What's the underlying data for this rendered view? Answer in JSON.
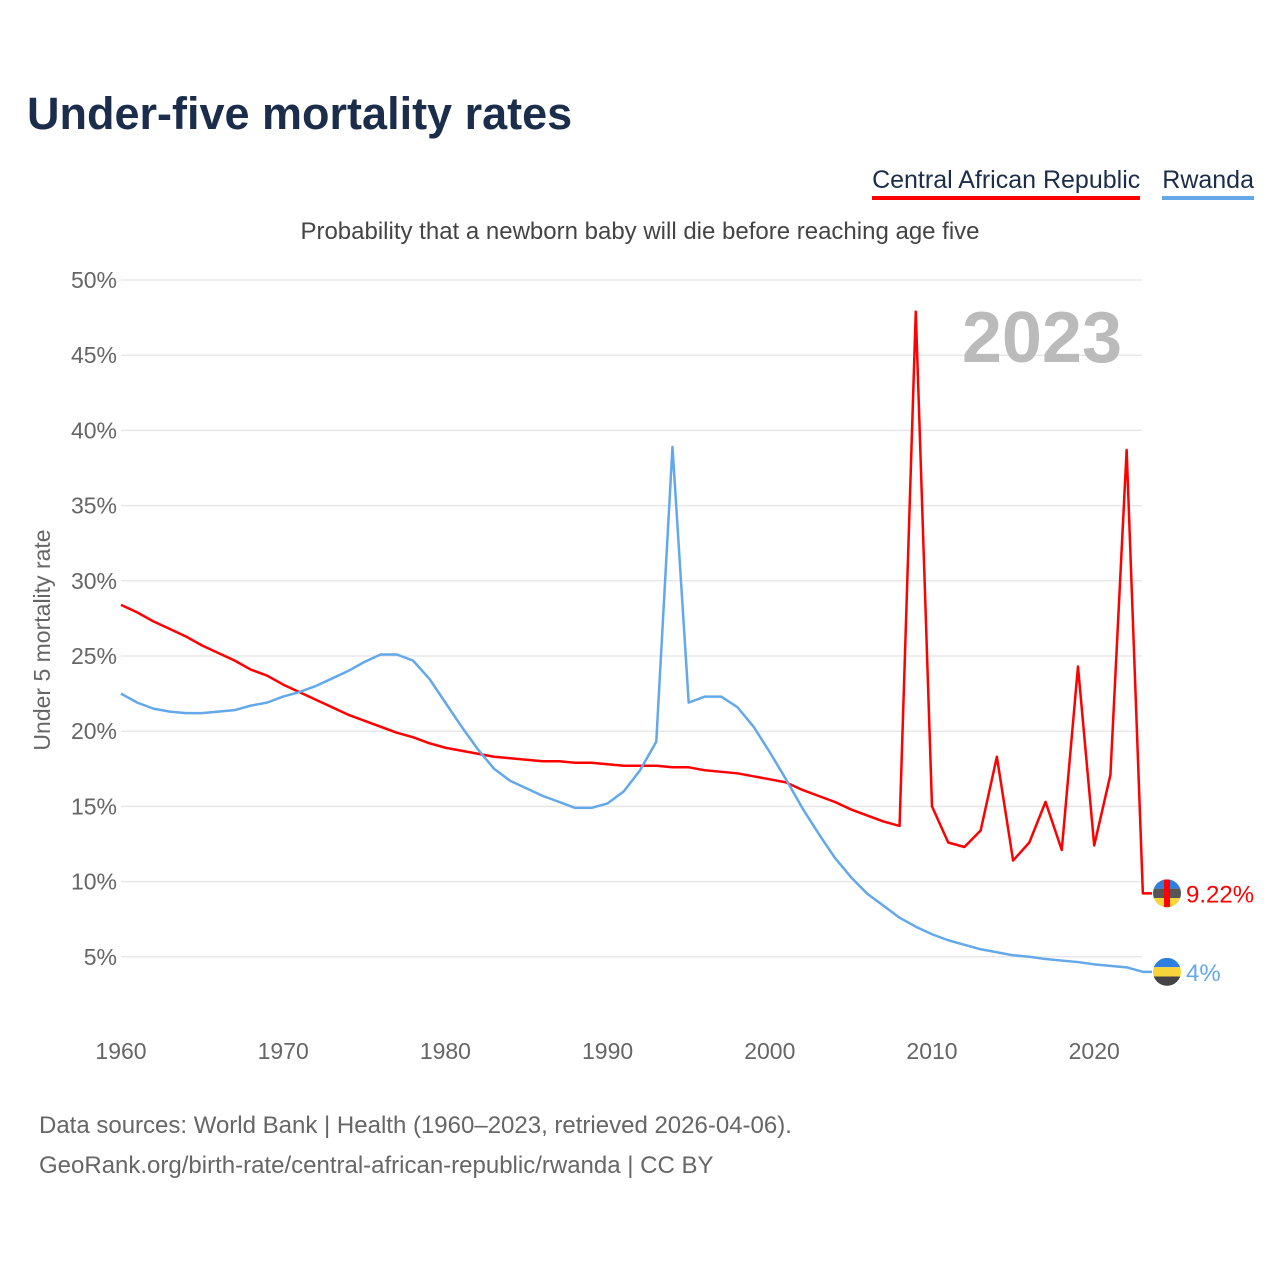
{
  "title": "Under-five mortality rates",
  "footer": {
    "line1": "Data sources: World Bank | Health (1960–2023, retrieved 2026-04-06).",
    "line2": "GeoRank.org/birth-rate/central-african-republic/rwanda | CC BY"
  },
  "chart_data": {
    "type": "line",
    "title": "Under-five mortality rates",
    "subtitle": "Probability that a newborn baby will die before reaching age five",
    "ylabel": "Under 5 mortality rate",
    "xlabel": "",
    "year_label": "2023",
    "xlim": [
      1960,
      2023
    ],
    "ylim": [
      0,
      50
    ],
    "x_ticks": [
      "1960",
      "1970",
      "1980",
      "1990",
      "2000",
      "2010",
      "2020"
    ],
    "y_ticks": [
      "5%",
      "10%",
      "15%",
      "20%",
      "25%",
      "30%",
      "35%",
      "40%",
      "45%",
      "50%"
    ],
    "legend_position": "top-right",
    "x": [
      1960,
      1961,
      1962,
      1963,
      1964,
      1965,
      1966,
      1967,
      1968,
      1969,
      1970,
      1971,
      1972,
      1973,
      1974,
      1975,
      1976,
      1977,
      1978,
      1979,
      1980,
      1981,
      1982,
      1983,
      1984,
      1985,
      1986,
      1987,
      1988,
      1989,
      1990,
      1991,
      1992,
      1993,
      1994,
      1995,
      1996,
      1997,
      1998,
      1999,
      2000,
      2001,
      2002,
      2003,
      2004,
      2005,
      2006,
      2007,
      2008,
      2009,
      2010,
      2011,
      2012,
      2013,
      2014,
      2015,
      2016,
      2017,
      2018,
      2019,
      2020,
      2021,
      2022,
      2023
    ],
    "series": [
      {
        "name": "Central African Republic",
        "color": "#ff0000",
        "end_label": "9.22%",
        "values": [
          28.4,
          27.9,
          27.3,
          26.8,
          26.3,
          25.7,
          25.2,
          24.7,
          24.1,
          23.7,
          23.1,
          22.6,
          22.1,
          21.6,
          21.1,
          20.7,
          20.3,
          19.9,
          19.6,
          19.2,
          18.9,
          18.7,
          18.5,
          18.3,
          18.2,
          18.1,
          18.0,
          18.0,
          17.9,
          17.9,
          17.8,
          17.7,
          17.7,
          17.7,
          17.6,
          17.6,
          17.4,
          17.3,
          17.2,
          17.0,
          16.8,
          16.6,
          16.1,
          15.7,
          15.3,
          14.8,
          14.4,
          14.0,
          13.7,
          47.9,
          15.0,
          12.6,
          12.3,
          13.4,
          18.3,
          11.4,
          12.6,
          15.3,
          12.1,
          24.3,
          12.4,
          17.1,
          38.7,
          9.22
        ]
      },
      {
        "name": "Rwanda",
        "color": "#64a8ea",
        "end_label": "4%",
        "values": [
          22.5,
          21.9,
          21.5,
          21.3,
          21.2,
          21.2,
          21.3,
          21.4,
          21.7,
          21.9,
          22.3,
          22.6,
          23.0,
          23.5,
          24.0,
          24.6,
          25.1,
          25.1,
          24.7,
          23.5,
          21.9,
          20.3,
          18.8,
          17.5,
          16.7,
          16.2,
          15.7,
          15.3,
          14.9,
          14.9,
          15.2,
          16.0,
          17.4,
          19.3,
          38.9,
          21.9,
          22.3,
          22.3,
          21.6,
          20.3,
          18.6,
          16.8,
          14.9,
          13.2,
          11.6,
          10.3,
          9.2,
          8.4,
          7.6,
          7.0,
          6.5,
          6.1,
          5.8,
          5.5,
          5.3,
          5.1,
          5.0,
          4.85,
          4.75,
          4.65,
          4.5,
          4.4,
          4.3,
          4.0
        ]
      }
    ]
  }
}
